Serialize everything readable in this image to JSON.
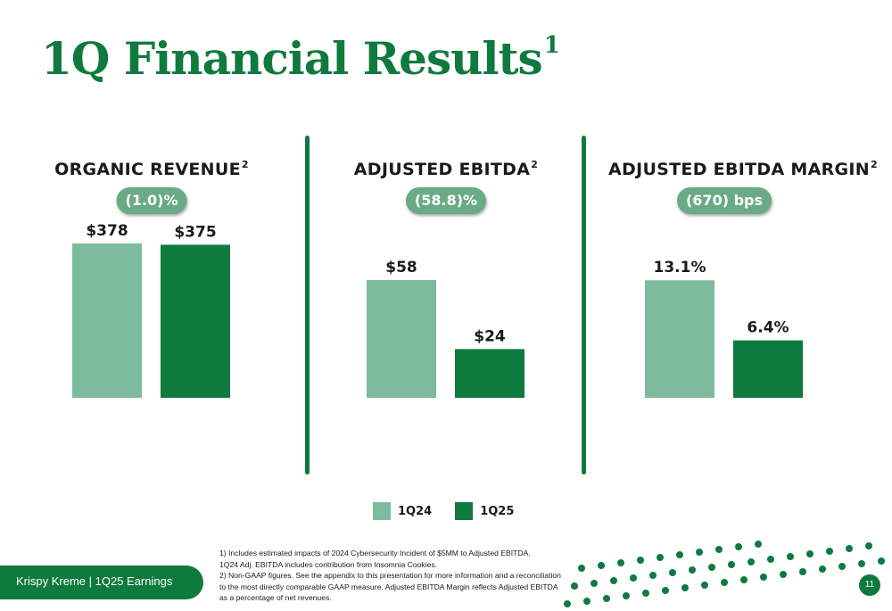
{
  "title": "1Q Financial Results",
  "title_footnote": "1",
  "colors": {
    "brand": "#0f7a3e",
    "prior": "#7dbb9e",
    "current": "#0f7a3e",
    "pill": "#6aaa85"
  },
  "chart_data": [
    {
      "type": "bar",
      "title": "ORGANIC REVENUE",
      "title_footnote": "2",
      "change": "(1.0)%",
      "categories": [
        "1Q24",
        "1Q25"
      ],
      "values": [
        378,
        375
      ],
      "labels": [
        "$378",
        "$375"
      ],
      "ylim": [
        0,
        378
      ]
    },
    {
      "type": "bar",
      "title": "ADJUSTED EBITDA",
      "title_footnote": "2",
      "change": "(58.8)%",
      "categories": [
        "1Q24",
        "1Q25"
      ],
      "values": [
        58,
        24
      ],
      "labels": [
        "$58",
        "$24"
      ],
      "ylim": [
        0,
        76
      ]
    },
    {
      "type": "bar",
      "title": "ADJUSTED EBITDA MARGIN",
      "title_footnote": "2",
      "change": "(670) bps",
      "categories": [
        "1Q24",
        "1Q25"
      ],
      "values": [
        13.1,
        6.4
      ],
      "labels": [
        "13.1%",
        "6.4%"
      ],
      "ylim": [
        0,
        17.2
      ]
    }
  ],
  "legend": [
    {
      "label": "1Q24",
      "color": "#7dbb9e"
    },
    {
      "label": "1Q25",
      "color": "#0f7a3e"
    }
  ],
  "footer": {
    "text": "Krispy Kreme  |  1Q25 Earnings",
    "page": "11"
  },
  "footnotes": [
    "1) Includes estimated impacts of 2024 Cybersecurity Incident of $5MM to Adjusted EBITDA.",
    "1Q24 Adj. EBITDA includes contribution from Insomnia Cookies.",
    "2) Non-GAAP figures. See the appendix to this presentation for more information and a reconciliation",
    "to the most directly comparable GAAP measure. Adjusted EBITDA Margin reflects Adjusted EBITDA",
    "as a percentage of net revenues."
  ]
}
